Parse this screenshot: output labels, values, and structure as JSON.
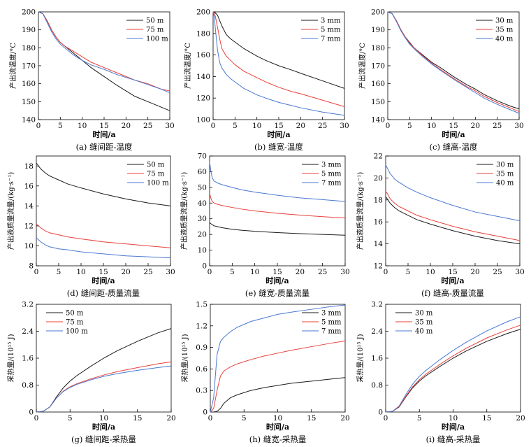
{
  "figure": {
    "panels": [
      {
        "id": "a",
        "caption": "(a) 缝间距-温度",
        "xlabel": "时间/a",
        "ylabel": "产出流温度/°C"
      },
      {
        "id": "b",
        "caption": "(b) 缝宽-温度",
        "xlabel": "时间/a",
        "ylabel": "产出流温度/°C"
      },
      {
        "id": "c",
        "caption": "(c) 缝高-温度",
        "xlabel": "时间/a",
        "ylabel": "产出流温度/°C"
      },
      {
        "id": "d",
        "caption": "(d) 缝间距-质量流量",
        "xlabel": "时间/a",
        "ylabel": "产出液质量流量/(kg·s⁻¹)"
      },
      {
        "id": "e",
        "caption": "(e) 缝宽-质量流量",
        "xlabel": "时间/a",
        "ylabel": "产出液质量流量/(kg·s⁻¹)"
      },
      {
        "id": "f",
        "caption": "(f) 缝高-质量流量",
        "xlabel": "时间/a",
        "ylabel": "产出液质量流量/(kg·s⁻¹)"
      },
      {
        "id": "g",
        "caption": "(g) 缝间距-采热量",
        "xlabel": "时间/a",
        "ylabel": "采热量/(10¹⁵ J)"
      },
      {
        "id": "h",
        "caption": "(h) 缝宽-采热量",
        "xlabel": "时间/a",
        "ylabel": "采热量/(10¹⁵ J)"
      },
      {
        "id": "i",
        "caption": "(i) 缝高-采热量",
        "xlabel": "时间/a",
        "ylabel": "采热量/(10¹⁵ J)"
      }
    ],
    "colors": {
      "black": "#1a1a1a",
      "red": "#e8403a",
      "blue": "#4a78d0"
    }
  },
  "chart_data": [
    {
      "type": "line",
      "panel": "a",
      "x": [
        0,
        1,
        2,
        3,
        4,
        5,
        6,
        8,
        10,
        12,
        15,
        18,
        20,
        22,
        25,
        28,
        30
      ],
      "xlim": [
        0,
        30
      ],
      "ylim": [
        140,
        200
      ],
      "xticks": [
        "0",
        "5",
        "10",
        "15",
        "20",
        "25",
        "30"
      ],
      "yticks": [
        "140",
        "150",
        "160",
        "170",
        "180",
        "190",
        "200"
      ],
      "legend_position": "top-right",
      "series": [
        {
          "name": "50 m",
          "color": "black",
          "values": [
            200,
            199,
            195,
            190,
            186,
            183,
            181,
            177,
            173,
            169,
            164,
            159,
            156,
            153,
            150,
            147,
            145
          ]
        },
        {
          "name": "75 m",
          "color": "red",
          "values": [
            200,
            199,
            195,
            190,
            186,
            183,
            181,
            178,
            175,
            172,
            169,
            166,
            164,
            162,
            160,
            157,
            156
          ]
        },
        {
          "name": "100 m",
          "color": "blue",
          "values": [
            200,
            199,
            194,
            189,
            185,
            182,
            180,
            176,
            173,
            170.5,
            168,
            165,
            163.5,
            162,
            159.5,
            157,
            155
          ]
        }
      ]
    },
    {
      "type": "line",
      "panel": "b",
      "x": [
        0,
        0.3,
        0.5,
        1,
        1.5,
        2,
        3,
        4,
        5,
        7,
        10,
        12,
        15,
        18,
        20,
        25,
        30
      ],
      "xlim": [
        0,
        30
      ],
      "ylim": [
        100,
        200
      ],
      "xticks": [
        "0",
        "5",
        "10",
        "15",
        "20",
        "25",
        "30"
      ],
      "yticks": [
        "100",
        "120",
        "140",
        "160",
        "180",
        "200"
      ],
      "legend_position": "top-right",
      "series": [
        {
          "name": "3 mm",
          "color": "black",
          "values": [
            200,
            200,
            199,
            197,
            192,
            187,
            179,
            175,
            172,
            166,
            159,
            155,
            150,
            146,
            143,
            136,
            129
          ]
        },
        {
          "name": "5 mm",
          "color": "red",
          "values": [
            200,
            199,
            196,
            186,
            175,
            166,
            159,
            155,
            151,
            145,
            139,
            135,
            130,
            126,
            124,
            118,
            112
          ]
        },
        {
          "name": "7 mm",
          "color": "blue",
          "values": [
            200,
            195,
            185,
            165,
            153,
            148,
            142,
            138,
            135,
            129,
            123,
            120,
            116,
            113,
            111,
            107,
            104
          ]
        }
      ]
    },
    {
      "type": "line",
      "panel": "c",
      "x": [
        0,
        1,
        2,
        3,
        4,
        5,
        6,
        8,
        10,
        12,
        15,
        18,
        20,
        22,
        25,
        28,
        30
      ],
      "xlim": [
        0,
        30
      ],
      "ylim": [
        140,
        200
      ],
      "xticks": [
        "0",
        "5",
        "10",
        "15",
        "20",
        "25",
        "30"
      ],
      "yticks": [
        "140",
        "150",
        "160",
        "170",
        "180",
        "190",
        "200"
      ],
      "legend_position": "top-right",
      "series": [
        {
          "name": "30 m",
          "color": "black",
          "values": [
            200,
            199,
            195,
            190,
            186,
            183,
            180,
            176,
            172,
            169,
            164,
            159.5,
            157,
            154,
            150.5,
            147.5,
            146
          ]
        },
        {
          "name": "35 m",
          "color": "red",
          "values": [
            200,
            199,
            195,
            190,
            186,
            182.5,
            180,
            175.5,
            171.5,
            168,
            163,
            158.5,
            156,
            153,
            149.5,
            146.5,
            144.5
          ]
        },
        {
          "name": "40 m",
          "color": "blue",
          "values": [
            200,
            199,
            194.5,
            189.5,
            185.5,
            182,
            179.5,
            175,
            171,
            167.5,
            162.5,
            158,
            155,
            152,
            148.5,
            145.5,
            143.5
          ]
        }
      ]
    },
    {
      "type": "line",
      "panel": "d",
      "x": [
        0,
        0.5,
        1,
        2,
        3,
        5,
        7,
        10,
        15,
        20,
        25,
        30
      ],
      "xlim": [
        0,
        30
      ],
      "ylim": [
        8,
        19
      ],
      "xticks": [
        "0",
        "5",
        "10",
        "15",
        "20",
        "25",
        "30"
      ],
      "yticks": [
        "8",
        "10",
        "12",
        "14",
        "16",
        "18"
      ],
      "legend_position": "top-right",
      "series": [
        {
          "name": "50 m",
          "color": "black",
          "values": [
            18.3,
            18.0,
            17.7,
            17.3,
            17.0,
            16.6,
            16.2,
            15.8,
            15.2,
            14.7,
            14.3,
            14.0
          ]
        },
        {
          "name": "75 m",
          "color": "red",
          "values": [
            12.2,
            12.0,
            11.8,
            11.5,
            11.3,
            11.1,
            10.9,
            10.7,
            10.4,
            10.2,
            10.0,
            9.8
          ]
        },
        {
          "name": "100 m",
          "color": "blue",
          "values": [
            10.8,
            10.6,
            10.4,
            10.1,
            9.9,
            9.7,
            9.6,
            9.4,
            9.2,
            9.0,
            8.9,
            8.8
          ]
        }
      ]
    },
    {
      "type": "line",
      "panel": "e",
      "x": [
        0,
        0.3,
        0.6,
        1,
        2,
        3,
        5,
        7,
        10,
        15,
        20,
        25,
        30
      ],
      "xlim": [
        0,
        30
      ],
      "ylim": [
        0,
        70
      ],
      "xticks": [
        "0",
        "5",
        "10",
        "15",
        "20",
        "25",
        "30"
      ],
      "yticks": [
        "0",
        "10",
        "20",
        "30",
        "40",
        "50",
        "60",
        "70"
      ],
      "legend_position": "top-right",
      "series": [
        {
          "name": "3 mm",
          "color": "black",
          "values": [
            27.5,
            26.8,
            26.2,
            25.5,
            24.8,
            24.2,
            23.3,
            22.7,
            22.0,
            21.2,
            20.5,
            20.0,
            19.5
          ]
        },
        {
          "name": "5 mm",
          "color": "red",
          "values": [
            46,
            43,
            41,
            40,
            39,
            38.3,
            37.2,
            36.2,
            35,
            33.5,
            32.3,
            31.3,
            30.5
          ]
        },
        {
          "name": "7 mm",
          "color": "blue",
          "values": [
            66,
            60,
            56,
            54,
            52.5,
            51.5,
            50,
            48.5,
            47,
            45,
            43.3,
            42.2,
            41
          ]
        }
      ]
    },
    {
      "type": "line",
      "panel": "f",
      "x": [
        0,
        0.5,
        1,
        2,
        3,
        5,
        7,
        10,
        15,
        20,
        25,
        30
      ],
      "xlim": [
        0,
        30
      ],
      "ylim": [
        12,
        22
      ],
      "xticks": [
        "0",
        "5",
        "10",
        "15",
        "20",
        "25",
        "30"
      ],
      "yticks": [
        "12",
        "14",
        "16",
        "18",
        "20",
        "22"
      ],
      "legend_position": "top-right",
      "series": [
        {
          "name": "30 m",
          "color": "black",
          "values": [
            18.3,
            18.0,
            17.7,
            17.3,
            17.0,
            16.6,
            16.2,
            15.8,
            15.2,
            14.7,
            14.3,
            14.0
          ]
        },
        {
          "name": "35 m",
          "color": "red",
          "values": [
            18.8,
            18.5,
            18.1,
            17.7,
            17.4,
            17.0,
            16.6,
            16.2,
            15.6,
            15.1,
            14.7,
            14.3
          ]
        },
        {
          "name": "40 m",
          "color": "blue",
          "values": [
            21.2,
            20.8,
            20.4,
            19.9,
            19.6,
            19.1,
            18.7,
            18.2,
            17.5,
            16.9,
            16.5,
            16.1
          ]
        }
      ]
    },
    {
      "type": "line",
      "panel": "g",
      "x": [
        0,
        1,
        2,
        3,
        4,
        5,
        6,
        8,
        10,
        12,
        15,
        18,
        20
      ],
      "xlim": [
        0,
        20
      ],
      "ylim": [
        0,
        3.2
      ],
      "xticks": [
        "0",
        "5",
        "10",
        "15",
        "20"
      ],
      "yticks": [
        "0",
        "0.8",
        "1.6",
        "2.4",
        "3.2"
      ],
      "legend_position": "top-left",
      "series": [
        {
          "name": "50 m",
          "color": "black",
          "values": [
            0,
            0.02,
            0.15,
            0.45,
            0.72,
            0.92,
            1.08,
            1.35,
            1.6,
            1.82,
            2.1,
            2.35,
            2.48
          ]
        },
        {
          "name": "75 m",
          "color": "red",
          "values": [
            0,
            0.02,
            0.15,
            0.42,
            0.62,
            0.75,
            0.84,
            0.98,
            1.1,
            1.2,
            1.32,
            1.43,
            1.49
          ]
        },
        {
          "name": "100 m",
          "color": "blue",
          "values": [
            0,
            0.02,
            0.15,
            0.42,
            0.61,
            0.73,
            0.82,
            0.95,
            1.06,
            1.14,
            1.24,
            1.32,
            1.37
          ]
        }
      ]
    },
    {
      "type": "line",
      "panel": "h",
      "x": [
        0,
        0.5,
        1,
        1.5,
        2,
        3,
        4,
        5,
        6,
        8,
        10,
        12,
        15,
        18,
        20
      ],
      "xlim": [
        0,
        20
      ],
      "ylim": [
        0,
        1.5
      ],
      "xticks": [
        "0",
        "5",
        "10",
        "15",
        "20"
      ],
      "yticks": [
        "0",
        "0.3",
        "0.6",
        "0.9",
        "1.2",
        "1.5"
      ],
      "legend_position": "top-right",
      "series": [
        {
          "name": "3 mm",
          "color": "black",
          "values": [
            0,
            0,
            0.01,
            0.05,
            0.12,
            0.2,
            0.24,
            0.27,
            0.3,
            0.34,
            0.37,
            0.4,
            0.43,
            0.46,
            0.48
          ]
        },
        {
          "name": "5 mm",
          "color": "red",
          "values": [
            0,
            0.05,
            0.3,
            0.5,
            0.57,
            0.63,
            0.67,
            0.7,
            0.73,
            0.78,
            0.82,
            0.86,
            0.91,
            0.96,
            0.99
          ]
        },
        {
          "name": "7 mm",
          "color": "blue",
          "values": [
            0,
            0.2,
            0.8,
            0.98,
            1.04,
            1.12,
            1.18,
            1.22,
            1.26,
            1.31,
            1.36,
            1.39,
            1.43,
            1.47,
            1.49
          ]
        }
      ]
    },
    {
      "type": "line",
      "panel": "i",
      "x": [
        0,
        1,
        2,
        3,
        4,
        5,
        6,
        8,
        10,
        12,
        15,
        18,
        20
      ],
      "xlim": [
        0,
        20
      ],
      "ylim": [
        0,
        3.2
      ],
      "xticks": [
        "0",
        "5",
        "10",
        "15",
        "20"
      ],
      "yticks": [
        "0",
        "0.8",
        "1.6",
        "2.4",
        "3.2"
      ],
      "legend_position": "top-left",
      "series": [
        {
          "name": "30 m",
          "color": "black",
          "values": [
            0,
            0.02,
            0.15,
            0.45,
            0.72,
            0.92,
            1.08,
            1.35,
            1.6,
            1.82,
            2.1,
            2.33,
            2.46
          ]
        },
        {
          "name": "35 m",
          "color": "red",
          "values": [
            0,
            0.02,
            0.16,
            0.47,
            0.75,
            0.96,
            1.13,
            1.41,
            1.67,
            1.9,
            2.2,
            2.44,
            2.58
          ]
        },
        {
          "name": "40 m",
          "color": "blue",
          "values": [
            0,
            0.02,
            0.18,
            0.52,
            0.83,
            1.06,
            1.24,
            1.55,
            1.83,
            2.08,
            2.41,
            2.68,
            2.83
          ]
        }
      ]
    }
  ]
}
